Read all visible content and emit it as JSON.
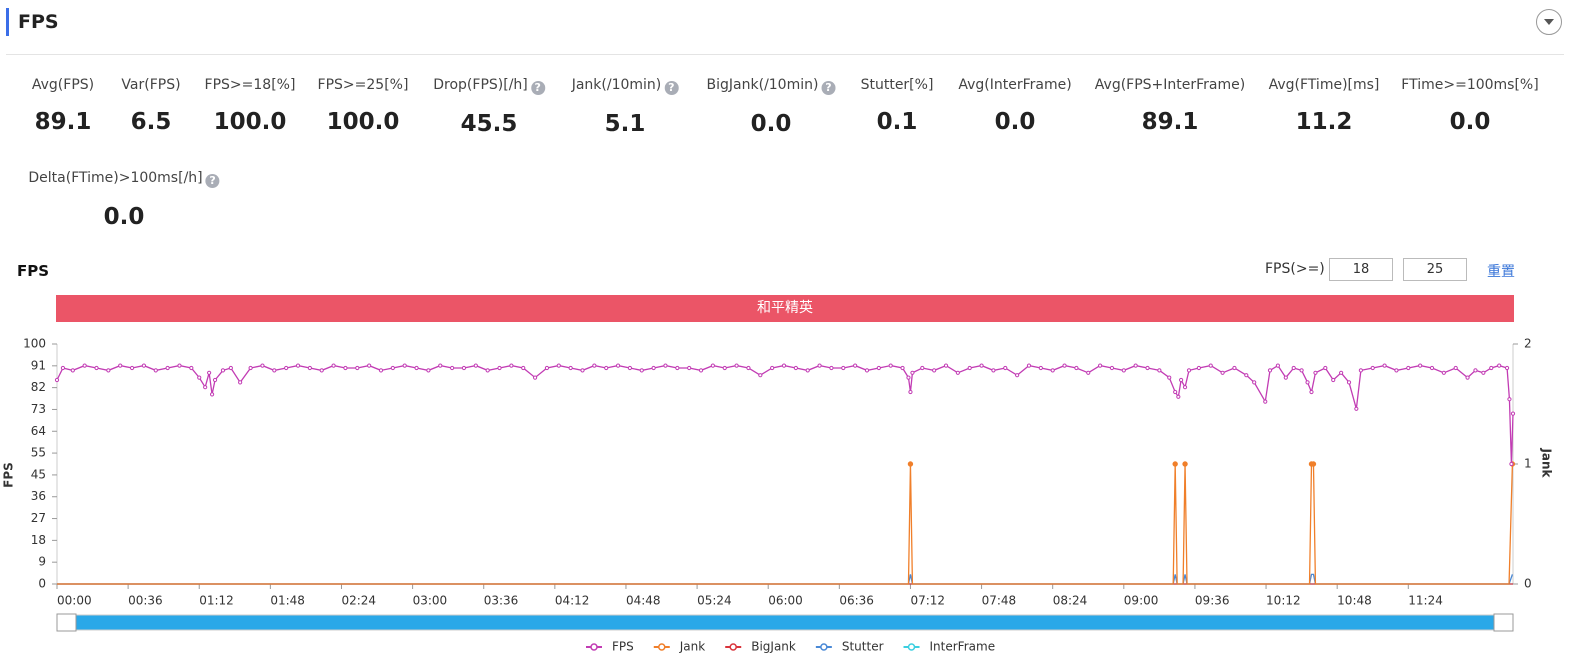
{
  "header": {
    "title": "FPS"
  },
  "metrics": [
    {
      "label": "Avg(FPS)",
      "value": "89.1"
    },
    {
      "label": "Var(FPS)",
      "value": "6.5"
    },
    {
      "label": "FPS>=18[%]",
      "value": "100.0"
    },
    {
      "label": "FPS>=25[%]",
      "value": "100.0"
    },
    {
      "label": "Drop(FPS)[/h]",
      "value": "45.5"
    },
    {
      "label": "Jank(/10min)",
      "value": "5.1"
    },
    {
      "label": "BigJank(/10min)",
      "value": "0.0"
    },
    {
      "label": "Stutter[%]",
      "value": "0.1"
    },
    {
      "label": "Avg(InterFrame)",
      "value": "0.0"
    },
    {
      "label": "Avg(FPS+InterFrame)",
      "value": "89.1"
    },
    {
      "label": "Avg(FTime)[ms]",
      "value": "11.2"
    },
    {
      "label": "FTime>=100ms[%]",
      "value": "0.0"
    },
    {
      "label": "Delta(FTime)>100ms[/h]",
      "value": "0.0"
    }
  ],
  "controls": {
    "threshold_label": "FPS(>=)",
    "threshold_low": "18",
    "threshold_high": "25",
    "reset": "重置"
  },
  "band": {
    "label": "和平精英"
  },
  "chart_data": {
    "type": "line",
    "title": "FPS",
    "y_label": "FPS",
    "y2_label": "Jank",
    "xlim": [
      0,
      737
    ],
    "xticks": [
      {
        "value": 0,
        "label": "00:00"
      },
      {
        "value": 36,
        "label": "00:36"
      },
      {
        "value": 72,
        "label": "01:12"
      },
      {
        "value": 108,
        "label": "01:48"
      },
      {
        "value": 144,
        "label": "02:24"
      },
      {
        "value": 180,
        "label": "03:00"
      },
      {
        "value": 216,
        "label": "03:36"
      },
      {
        "value": 252,
        "label": "04:12"
      },
      {
        "value": 288,
        "label": "04:48"
      },
      {
        "value": 324,
        "label": "05:24"
      },
      {
        "value": 360,
        "label": "06:00"
      },
      {
        "value": 396,
        "label": "06:36"
      },
      {
        "value": 432,
        "label": "07:12"
      },
      {
        "value": 468,
        "label": "07:48"
      },
      {
        "value": 504,
        "label": "08:24"
      },
      {
        "value": 540,
        "label": "09:00"
      },
      {
        "value": 576,
        "label": "09:36"
      },
      {
        "value": 612,
        "label": "10:12"
      },
      {
        "value": 648,
        "label": "10:48"
      },
      {
        "value": 684,
        "label": "11:24"
      }
    ],
    "ylim": [
      0,
      100
    ],
    "yticks": [
      0,
      {
        "value": 9.09,
        "label": "9"
      },
      {
        "value": 18.18,
        "label": "18"
      },
      {
        "value": 27.27,
        "label": "27"
      },
      {
        "value": 36.36,
        "label": "36"
      },
      {
        "value": 45.45,
        "label": "45"
      },
      {
        "value": 54.55,
        "label": "55"
      },
      {
        "value": 63.64,
        "label": "64"
      },
      {
        "value": 72.73,
        "label": "73"
      },
      {
        "value": 81.82,
        "label": "82"
      },
      {
        "value": 90.91,
        "label": "91"
      },
      100
    ],
    "y2lim": [
      0,
      2
    ],
    "y2ticks": [
      0,
      1,
      2
    ],
    "series": [
      {
        "name": "FPS",
        "color": "#c23cb4",
        "x": [
          0,
          3,
          8,
          14,
          20,
          26,
          32,
          38,
          44,
          50,
          56,
          62,
          68,
          72,
          75,
          77,
          78.5,
          80,
          84,
          88,
          92.7,
          98,
          104,
          110,
          116,
          122,
          128,
          134,
          140,
          146,
          152,
          158,
          164,
          170,
          176,
          182,
          188,
          194,
          200,
          206,
          212,
          218,
          224,
          230,
          236,
          242,
          248,
          254,
          260,
          266,
          272,
          278,
          284,
          290,
          296,
          302,
          308,
          314,
          320,
          326,
          332,
          338,
          344,
          350,
          356,
          362,
          368,
          374,
          380,
          386,
          392,
          398,
          404,
          410,
          416,
          422,
          428,
          431,
          432,
          433,
          438,
          444,
          450,
          456,
          462,
          468,
          474,
          480,
          486,
          492,
          498,
          504,
          510,
          516,
          522,
          528,
          534,
          540,
          546,
          552,
          558,
          563,
          566,
          567.6,
          569,
          571,
          573,
          578,
          584,
          590,
          596,
          602,
          606,
          611.6,
          614,
          618,
          622,
          626,
          630,
          633,
          635,
          637,
          642,
          646,
          650,
          654,
          657.7,
          660,
          666,
          672,
          678,
          684,
          690,
          696,
          702,
          708,
          714,
          718,
          722,
          726,
          730,
          734,
          735.2,
          736.2,
          737
        ],
        "values": [
          85,
          90,
          89,
          91,
          90,
          89,
          91,
          90,
          91,
          89,
          90,
          91,
          90,
          86,
          82,
          88,
          79,
          85,
          89,
          90,
          84,
          90,
          91,
          89,
          90,
          91,
          90,
          89,
          91,
          90,
          90,
          91,
          89,
          90,
          91,
          90,
          89,
          91,
          90,
          90,
          91,
          89,
          90,
          91,
          90,
          86,
          90,
          91,
          90,
          89,
          91,
          90,
          91,
          90,
          89,
          90,
          91,
          90,
          90,
          89,
          91,
          90,
          91,
          90,
          87,
          90,
          91,
          90,
          89,
          91,
          90,
          90,
          91,
          89,
          90,
          91,
          90,
          86,
          80,
          88,
          90,
          89,
          91,
          88,
          90,
          91,
          89,
          90,
          87,
          91,
          90,
          89,
          91,
          90,
          88,
          91,
          90,
          89,
          91,
          90,
          89,
          86,
          80,
          78,
          85,
          82,
          89,
          90,
          91,
          88,
          90,
          87,
          84,
          76,
          89,
          91,
          86,
          90,
          89,
          84,
          80,
          88,
          90,
          85,
          88,
          84,
          73,
          89,
          90,
          91,
          89,
          90,
          91,
          90,
          88,
          90,
          86,
          89,
          88,
          90,
          91,
          90,
          77,
          50,
          71
        ]
      },
      {
        "name": "Jank",
        "color": "#f07f2a",
        "axis": "y2",
        "markers": true,
        "x": [
          0,
          431,
          432,
          433,
          565,
          566,
          567,
          570,
          571,
          572,
          634,
          635,
          636,
          637,
          735,
          736.7
        ],
        "values": [
          0,
          0,
          1,
          0,
          0,
          1,
          0,
          0,
          1,
          0,
          0,
          1,
          1,
          0,
          0,
          1
        ]
      },
      {
        "name": "BigJank",
        "color": "#d9343c",
        "axis": "y2",
        "x": [
          0,
          737
        ],
        "values": [
          0,
          0
        ]
      },
      {
        "name": "Stutter",
        "color": "#4a89d6",
        "axis": "y2",
        "x": [
          0,
          431,
          432,
          433,
          565,
          566,
          567,
          570,
          571,
          572,
          634,
          635,
          636,
          637,
          735,
          736.7
        ],
        "values": [
          0,
          0,
          0.08,
          0,
          0,
          0.08,
          0,
          0,
          0.08,
          0,
          0,
          0.08,
          0.08,
          0,
          0,
          0.08
        ]
      },
      {
        "name": "InterFrame",
        "color": "#3ccfe0",
        "axis": "y2",
        "x": [
          0,
          737
        ],
        "values": [
          0,
          0
        ]
      }
    ]
  }
}
